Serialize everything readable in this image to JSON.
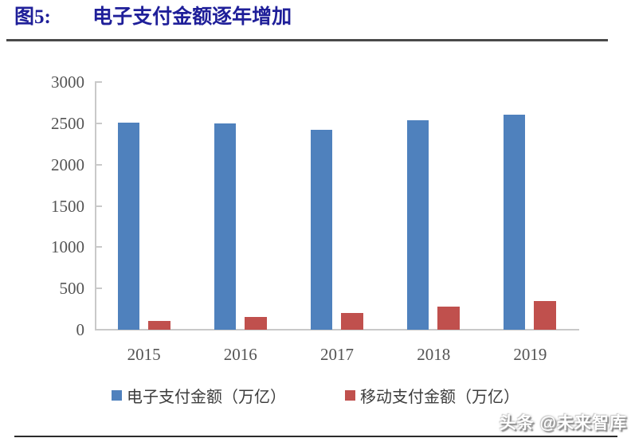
{
  "header": {
    "figure_label": "图5:",
    "title": "电子支付金额逐年增加",
    "title_color": "#1F1F99"
  },
  "chart_data": {
    "type": "bar",
    "title": "电子支付金额逐年增加",
    "categories": [
      "2015",
      "2016",
      "2017",
      "2018",
      "2019"
    ],
    "series": [
      {
        "name": "电子支付金额（万亿）",
        "color": "#4F81BD",
        "values": [
          2506,
          2494,
          2419,
          2540,
          2607
        ]
      },
      {
        "name": "移动支付金额（万亿）",
        "color": "#C0504D",
        "values": [
          108,
          158,
          203,
          277,
          347
        ]
      }
    ],
    "xlabel": "",
    "ylabel": "",
    "ylim": [
      0,
      3000
    ],
    "y_ticks": [
      0,
      500,
      1000,
      1500,
      2000,
      2500,
      3000
    ],
    "grid": false,
    "legend_position": "bottom",
    "axis_color": "#c9c9c9",
    "tick_label_color": "#545454"
  },
  "footer": {
    "watermark": "头条 @未来智库"
  }
}
